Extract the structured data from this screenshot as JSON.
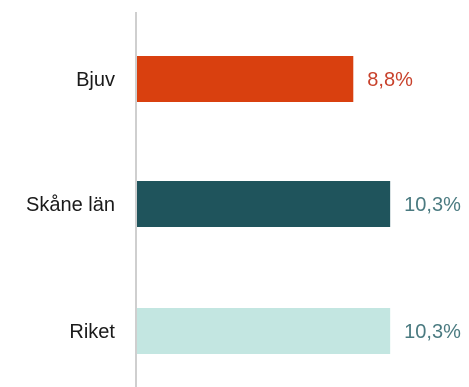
{
  "chart_data": {
    "type": "bar",
    "orientation": "horizontal",
    "categories": [
      "Bjuv",
      "Skåne län",
      "Riket"
    ],
    "values": [
      8.8,
      10.3,
      10.3
    ],
    "value_labels": [
      "8,8%",
      "10,3%",
      "10,3%"
    ],
    "colors": [
      "#d9400f",
      "#1f545c",
      "#c3e6e1"
    ],
    "label_colors": [
      "#c8412b",
      "#4a7a80",
      "#4a7a80"
    ],
    "axis_color": "#cfcfcf",
    "xlim": [
      0,
      10.7
    ],
    "grid": false,
    "legend": "none"
  }
}
